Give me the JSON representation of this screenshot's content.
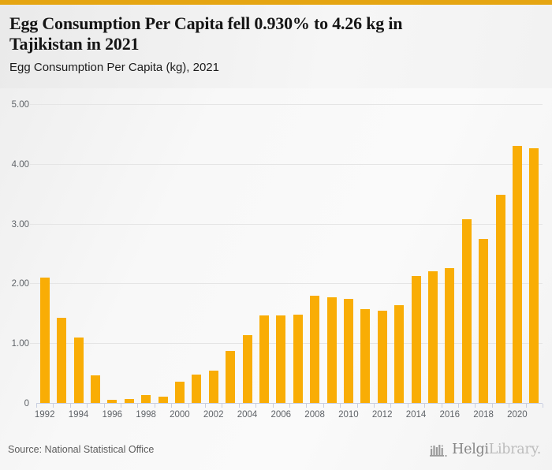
{
  "colors": {
    "top_border": "#E5A512",
    "bar": "#F9AD05",
    "gridline": "#e5e5e5",
    "axis": "#c9cfe1",
    "tick_text": "#5f6368"
  },
  "header": {
    "title_line1": "Egg Consumption Per Capita fell 0.930% to 4.26 kg in",
    "title_line2": "Tajikistan in 2021",
    "subtitle": "Egg Consumption Per Capita (kg), 2021"
  },
  "chart_data": {
    "type": "bar",
    "title": "Egg Consumption Per Capita (kg), 2021",
    "xlabel": "",
    "ylabel": "",
    "categories": [
      "1992",
      "1993",
      "1994",
      "1995",
      "1996",
      "1997",
      "1998",
      "1999",
      "2000",
      "2001",
      "2002",
      "2003",
      "2004",
      "2005",
      "2006",
      "2007",
      "2008",
      "2009",
      "2010",
      "2011",
      "2012",
      "2013",
      "2014",
      "2015",
      "2016",
      "2017",
      "2018",
      "2019",
      "2020",
      "2021"
    ],
    "values": [
      2.1,
      1.42,
      1.1,
      0.46,
      0.05,
      0.06,
      0.13,
      0.11,
      0.35,
      0.47,
      0.54,
      0.87,
      1.13,
      1.47,
      1.47,
      1.48,
      1.79,
      1.77,
      1.74,
      1.57,
      1.54,
      1.64,
      2.13,
      2.2,
      2.25,
      3.08,
      2.75,
      3.48,
      4.3,
      4.26
    ],
    "ylim": [
      0,
      5
    ],
    "yticks": [
      {
        "v": 0,
        "label": "0"
      },
      {
        "v": 1,
        "label": "1.00"
      },
      {
        "v": 2,
        "label": "2.00"
      },
      {
        "v": 3,
        "label": "3.00"
      },
      {
        "v": 4,
        "label": "4.00"
      },
      {
        "v": 5,
        "label": "5.00"
      }
    ],
    "xtick_labels": [
      "1992",
      "1994",
      "1996",
      "1998",
      "2000",
      "2002",
      "2004",
      "2006",
      "2008",
      "2010",
      "2012",
      "2014",
      "2016",
      "2018",
      "2020"
    ],
    "grid": true,
    "legend": false,
    "bar_color": "#F9AD05"
  },
  "footer": {
    "source": "Source: National Statistical Office",
    "logo_text_1": "Helgi",
    "logo_text_2": "Library."
  }
}
